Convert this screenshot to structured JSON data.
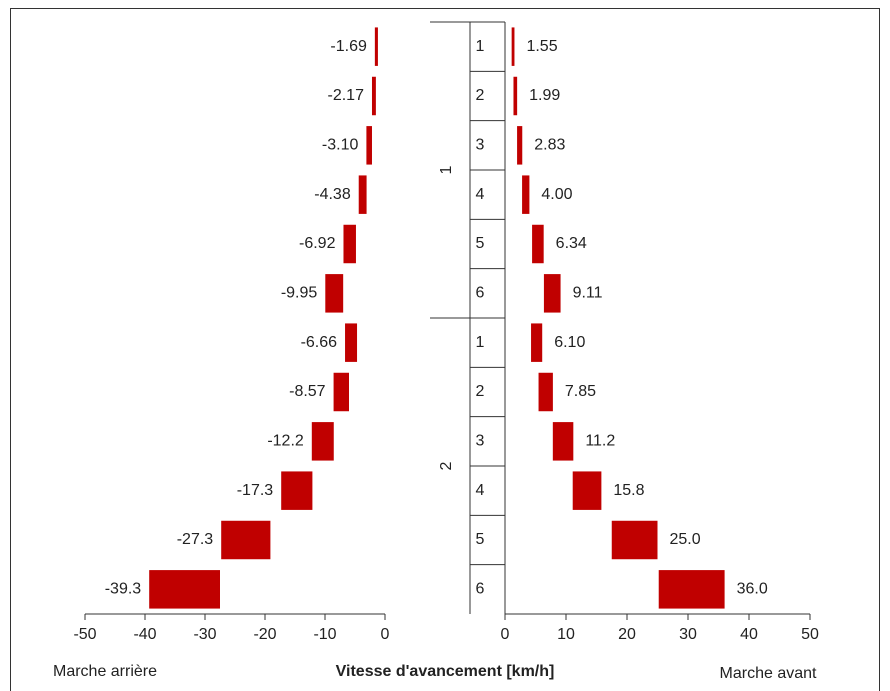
{
  "chart_data": {
    "type": "floating-bar",
    "xlabel": "Vitesse d'avancement [km/h]",
    "left_label": "Marche arrière",
    "right_label": "Marche avant",
    "groups": [
      "1",
      "2"
    ],
    "categories": [
      "1",
      "2",
      "3",
      "4",
      "5",
      "6",
      "1",
      "2",
      "3",
      "4",
      "5",
      "6"
    ],
    "series": [
      {
        "side": "left",
        "color": "#c00000",
        "values": [
          -1.69,
          -2.17,
          -3.1,
          -4.38,
          -6.92,
          -9.95,
          -6.66,
          -8.57,
          -12.2,
          -17.3,
          -27.3,
          -39.3
        ],
        "value_labels": [
          "-1.69",
          "-2.17",
          "-3.10",
          "-4.38",
          "-6.92",
          "-9.95",
          "-6.66",
          "-8.57",
          "-12.2",
          "-17.3",
          "-27.3",
          "-39.3"
        ],
        "starts": [
          -1.18,
          -1.52,
          -2.17,
          -3.07,
          -4.84,
          -6.97,
          -4.66,
          -6.0,
          -8.54,
          -12.1,
          -19.1,
          -27.5
        ],
        "xlim": [
          -50,
          0
        ],
        "xticks": [
          -50,
          -40,
          -30,
          -20,
          -10,
          0
        ]
      },
      {
        "side": "right",
        "color": "#c00000",
        "values": [
          1.55,
          1.99,
          2.83,
          4.0,
          6.34,
          9.11,
          6.1,
          7.85,
          11.2,
          15.8,
          25.0,
          36.0
        ],
        "value_labels": [
          "1.55",
          "1.99",
          "2.83",
          "4.00",
          "6.34",
          "9.11",
          "6.10",
          "7.85",
          "11.2",
          "15.8",
          "25.0",
          "36.0"
        ],
        "starts": [
          1.09,
          1.39,
          1.98,
          2.8,
          4.44,
          6.38,
          4.27,
          5.5,
          7.84,
          11.1,
          17.5,
          25.2
        ],
        "xlim": [
          0,
          50
        ],
        "xticks": [
          0,
          10,
          20,
          30,
          40,
          50
        ]
      }
    ]
  }
}
